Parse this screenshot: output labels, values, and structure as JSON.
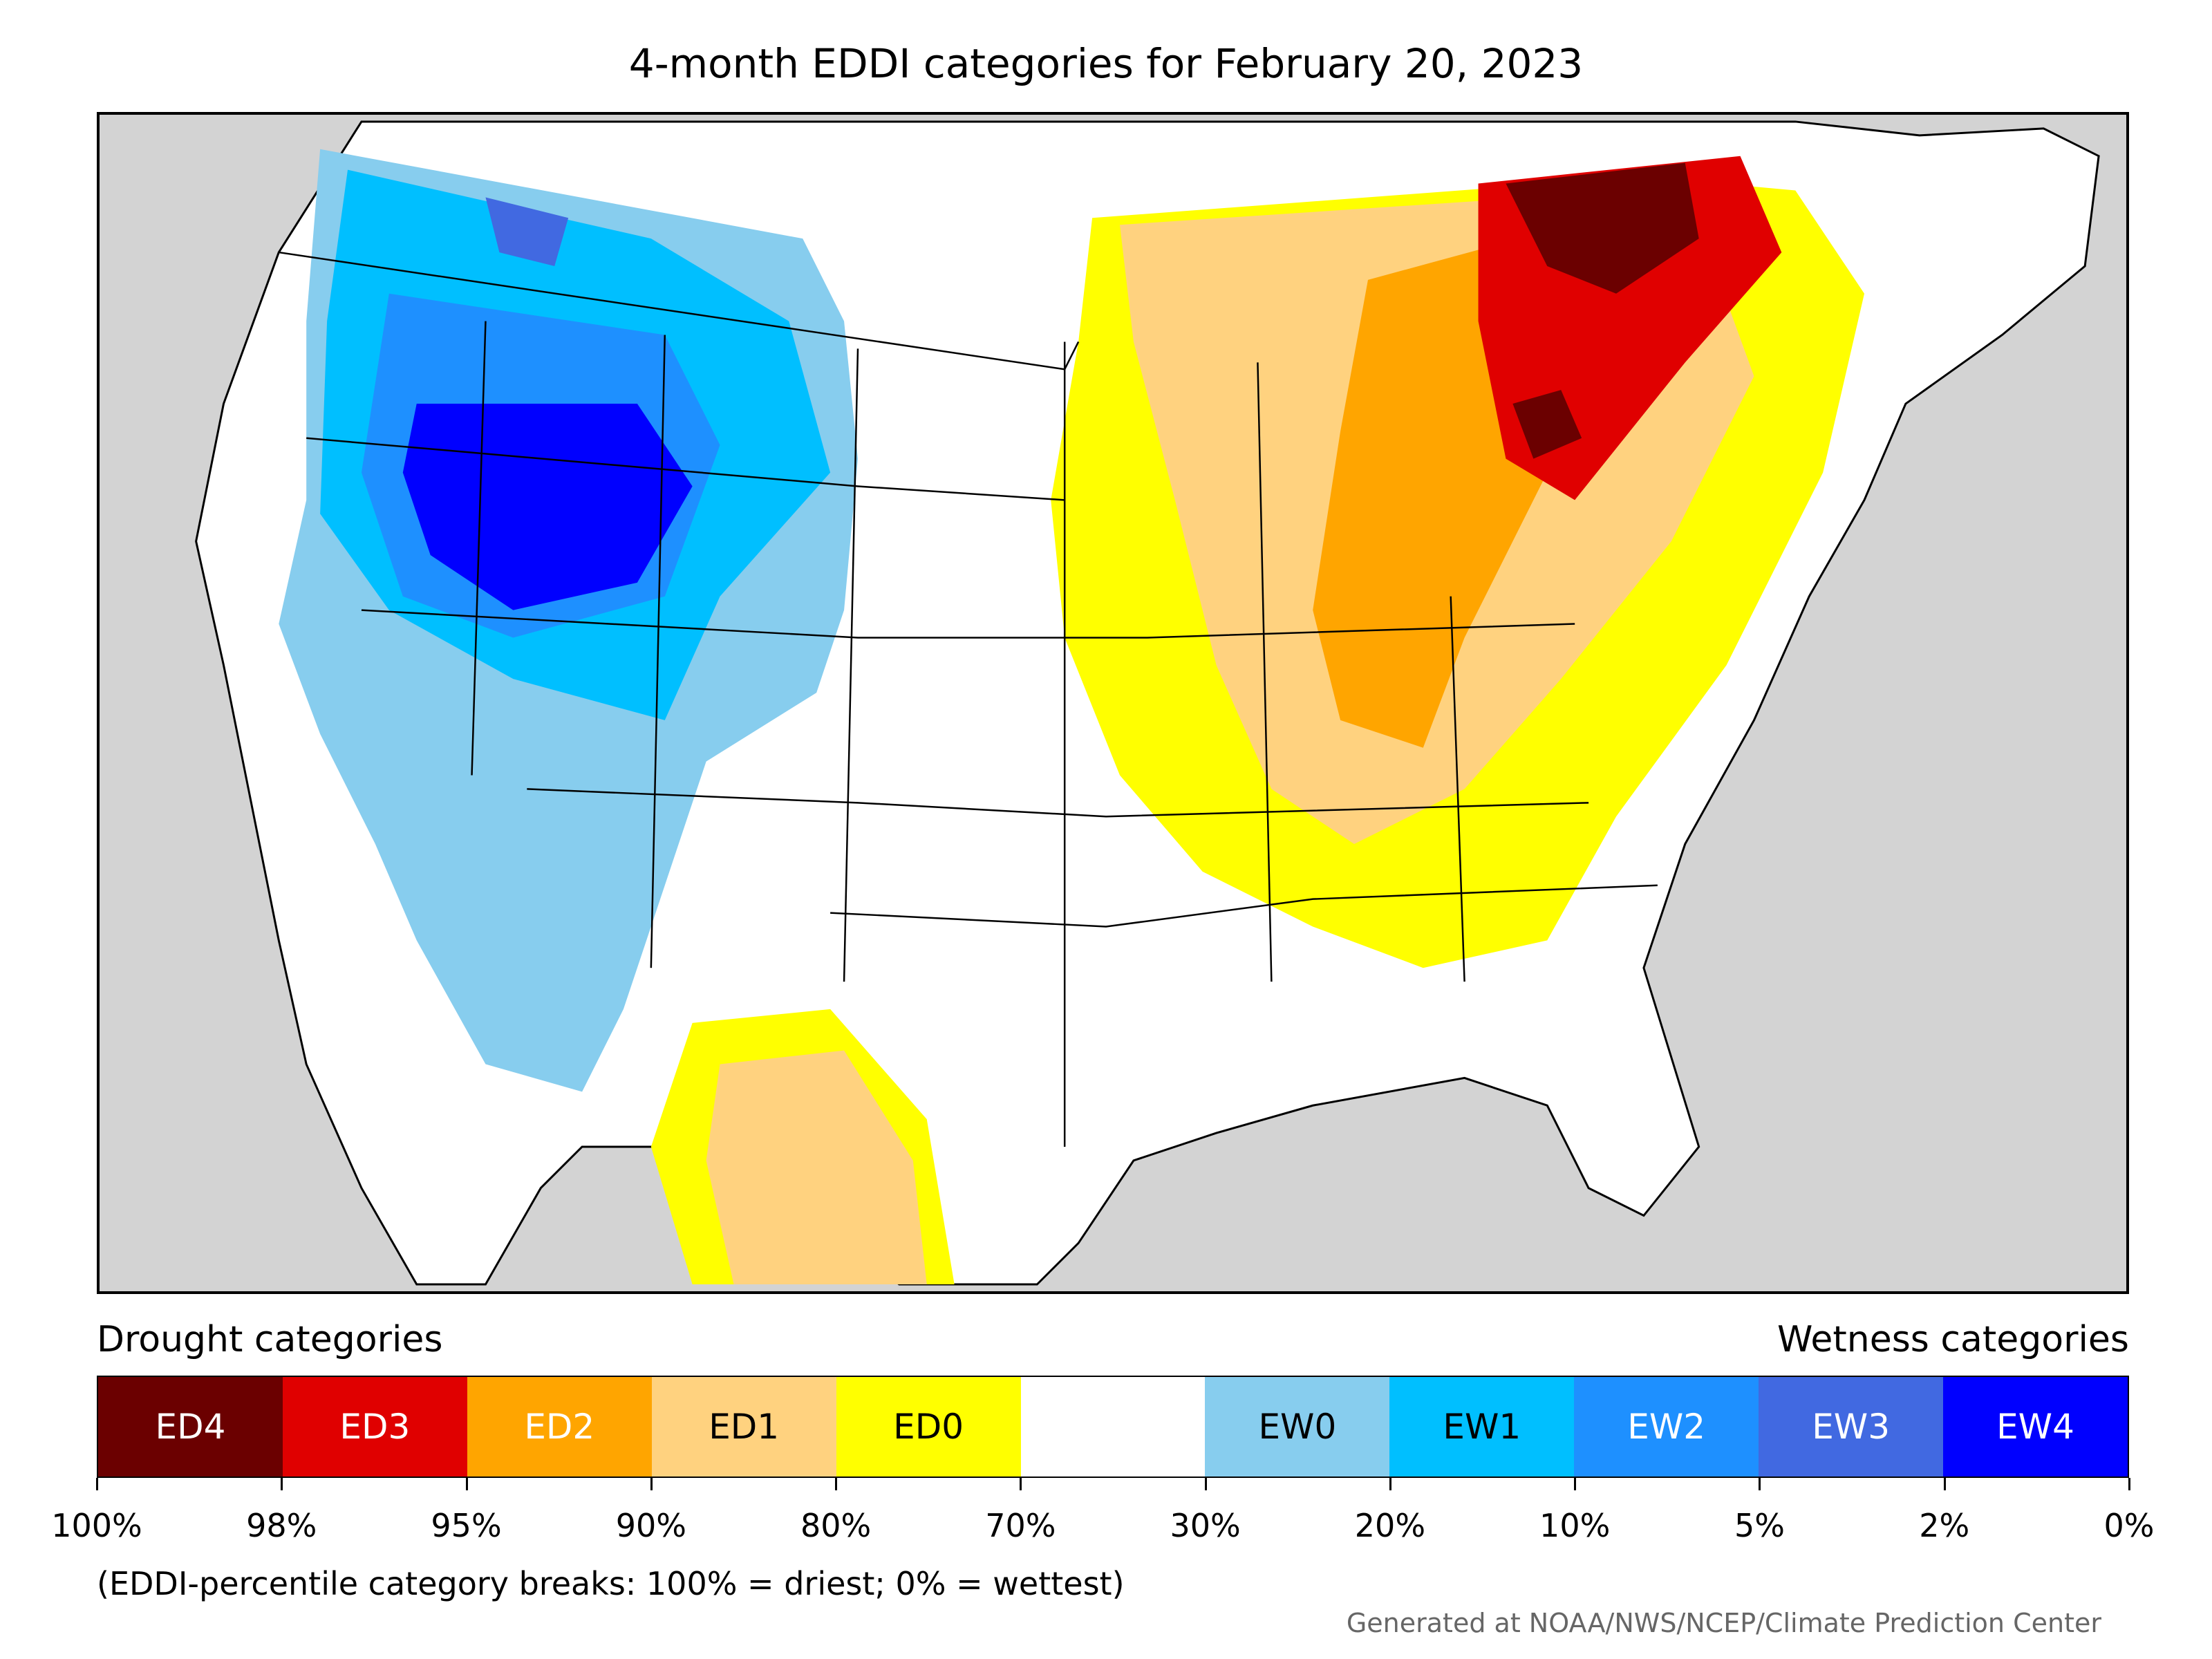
{
  "title": "4-month EDDI categories for February 20, 2023",
  "map": {
    "region": "Contiguous United States",
    "land_color": "#ffffff",
    "water_color": "#d3d3d3",
    "border_color": "#000000"
  },
  "legend": {
    "left_heading": "Drought categories",
    "right_heading": "Wetness categories",
    "categories": [
      {
        "label": "ED4",
        "color": "#6b0000",
        "text_color": "#ffffff"
      },
      {
        "label": "ED3",
        "color": "#e00000",
        "text_color": "#ffffff"
      },
      {
        "label": "ED2",
        "color": "#ffa500",
        "text_color": "#ffffff"
      },
      {
        "label": "ED1",
        "color": "#ffd27f",
        "text_color": "#000000"
      },
      {
        "label": "ED0",
        "color": "#ffff00",
        "text_color": "#000000"
      },
      {
        "label": "",
        "color": "#ffffff",
        "text_color": "#000000"
      },
      {
        "label": "EW0",
        "color": "#87cdee",
        "text_color": "#000000"
      },
      {
        "label": "EW1",
        "color": "#00bfff",
        "text_color": "#000000"
      },
      {
        "label": "EW2",
        "color": "#1e90ff",
        "text_color": "#ffffff"
      },
      {
        "label": "EW3",
        "color": "#4169e1",
        "text_color": "#ffffff"
      },
      {
        "label": "EW4",
        "color": "#0000ff",
        "text_color": "#ffffff"
      }
    ],
    "breaks": [
      "100%",
      "98%",
      "95%",
      "90%",
      "80%",
      "70%",
      "30%",
      "20%",
      "10%",
      "5%",
      "2%",
      "0%"
    ]
  },
  "note": "(EDDI-percentile category breaks: 100% = driest; 0% = wettest)",
  "credit": "Generated at NOAA/NWS/NCEP/Climate Prediction Center"
}
